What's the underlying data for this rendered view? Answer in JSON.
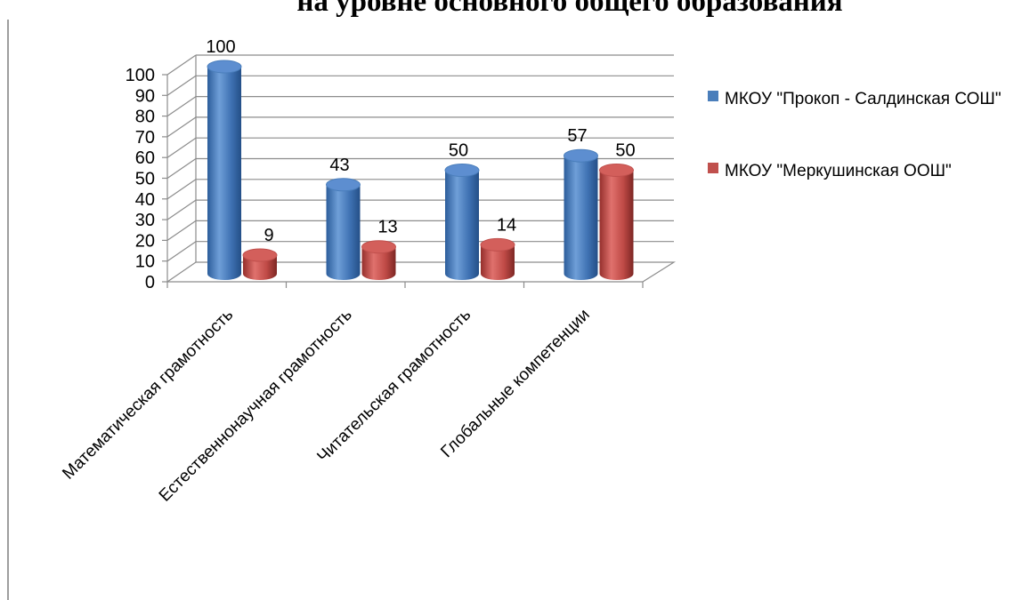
{
  "heading": "на уровне основного общего образования",
  "colors": {
    "series1": "#4a7ebb",
    "series2": "#c0504d"
  },
  "chart_data": {
    "type": "bar",
    "categories": [
      "Математическая грамотность",
      "Естественнонаучная грамотность",
      "Читательская грамотность",
      "Глобальные компетенции"
    ],
    "series": [
      {
        "name": "МКОУ \"Прокоп - Салдинская СОШ\"",
        "values": [
          100,
          43,
          50,
          57
        ]
      },
      {
        "name": "МКОУ \"Меркушинская ООШ\"",
        "values": [
          9,
          13,
          14,
          50
        ]
      }
    ],
    "ylim": [
      0,
      100
    ],
    "yticks": [
      0,
      10,
      20,
      30,
      40,
      50,
      60,
      70,
      80,
      90,
      100
    ],
    "grid": true,
    "legend": "right"
  }
}
